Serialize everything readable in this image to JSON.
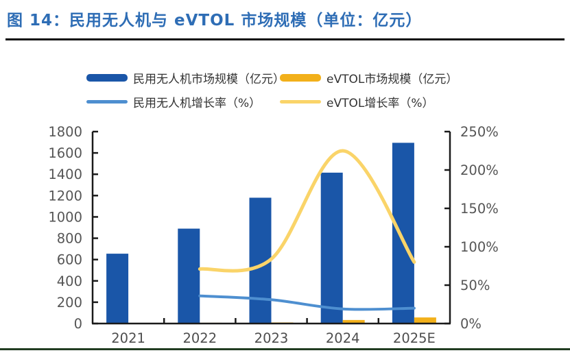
{
  "title": {
    "text": "图 14：民用无人机与 eVTOL 市场规模（单位：亿元）"
  },
  "colors": {
    "title_blue": "#2E6DB5",
    "bar_blue": "#1A56A8",
    "bar_gold": "#F2B01A",
    "line_blue": "#4E8FD0",
    "line_yellow": "#FAD469",
    "axis_line": "#1a1a1a",
    "axis_text": "#555555",
    "bottom_rule_green": "#213c21"
  },
  "legend": {
    "items": [
      {
        "label": "民用无人机市场规模（亿元）",
        "swatch": "bar",
        "color": "#1A56A8"
      },
      {
        "label": "eVTOL市场规模（亿元）",
        "swatch": "bar",
        "color": "#F2B01A"
      },
      {
        "label": "民用无人机增长率（%）",
        "swatch": "line",
        "color": "#4E8FD0"
      },
      {
        "label": "eVTOL增长率（%）",
        "swatch": "line",
        "color": "#FAD469"
      }
    ]
  },
  "chart_data": {
    "type": "bar",
    "subtype": "combo-bar-line-dual-axis",
    "title": "民用无人机与 eVTOL 市场规模（单位：亿元）",
    "categories": [
      "2021",
      "2022",
      "2023",
      "2024",
      "2025E"
    ],
    "series": [
      {
        "name": "民用无人机市场规模（亿元）",
        "type": "bar",
        "axis": "left",
        "color": "#1A56A8",
        "values": [
          655,
          890,
          1180,
          1415,
          1695
        ]
      },
      {
        "name": "eVTOL市场规模（亿元）",
        "type": "bar",
        "axis": "left",
        "color": "#F2B01A",
        "values": [
          4,
          7,
          10,
          33,
          57
        ]
      },
      {
        "name": "民用无人机增长率（%）",
        "type": "line",
        "axis": "right",
        "color": "#4E8FD0",
        "values": [
          null,
          36,
          31,
          19,
          20
        ]
      },
      {
        "name": "eVTOL增长率（%）",
        "type": "line",
        "axis": "right",
        "color": "#FAD469",
        "values": [
          null,
          71,
          84,
          225,
          80
        ]
      }
    ],
    "left_axis": {
      "min": 0,
      "max": 1800,
      "step": 200,
      "suffix": ""
    },
    "right_axis": {
      "min": 0,
      "max": 250,
      "step": 50,
      "suffix": "%"
    },
    "grid": false,
    "legend_position": "top"
  }
}
